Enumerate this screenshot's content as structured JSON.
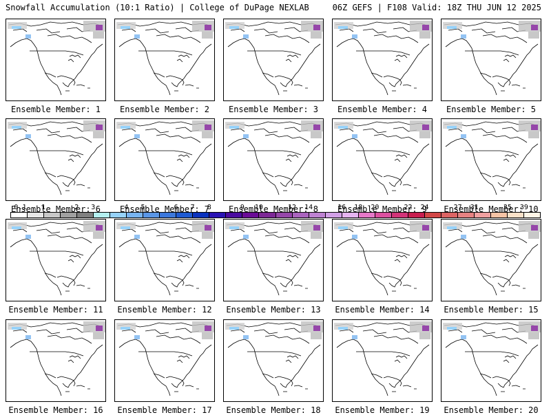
{
  "header": {
    "title_left": "Snowfall Accumulation (10:1 Ratio) | College of DuPage NEXLAB",
    "title_right": "06Z GEFS | F108 Valid: 18Z THU JUN 12 2025"
  },
  "panels": [
    {
      "label": "Ensemble Member: 1"
    },
    {
      "label": "Ensemble Member: 2"
    },
    {
      "label": "Ensemble Member: 3"
    },
    {
      "label": "Ensemble Member: 4"
    },
    {
      "label": "Ensemble Member: 5"
    },
    {
      "label": "Ensemble Member: 6"
    },
    {
      "label": "Ensemble Member: 7"
    },
    {
      "label": "Ensemble Member: 8"
    },
    {
      "label": "Ensemble Member: 9"
    },
    {
      "label": "Ensemble Member: 10"
    },
    {
      "label": "Ensemble Member: 11"
    },
    {
      "label": "Ensemble Member: 12"
    },
    {
      "label": "Ensemble Member: 13"
    },
    {
      "label": "Ensemble Member: 14"
    },
    {
      "label": "Ensemble Member: 15"
    },
    {
      "label": "Ensemble Member: 16"
    },
    {
      "label": "Ensemble Member: 17"
    },
    {
      "label": "Ensemble Member: 18"
    },
    {
      "label": "Ensemble Member: 19"
    },
    {
      "label": "Ensemble Member: 20"
    }
  ],
  "colorbar": {
    "tick_labels": [
      "0.1",
      "1",
      "2",
      "3",
      "4",
      "5",
      "6",
      "7",
      "8",
      "9",
      "10",
      "12",
      "14",
      "16",
      "18",
      "20",
      "22",
      "24",
      "27",
      "31",
      "35",
      "39"
    ],
    "colors": [
      "#ffffff",
      "#e6e6e6",
      "#c8c8c8",
      "#a0a0a0",
      "#808080",
      "#b4f0f0",
      "#96d2fa",
      "#78b4f0",
      "#5a96e6",
      "#3c78dc",
      "#1e5ad2",
      "#0a32be",
      "#2a14b4",
      "#4a0aa0",
      "#6a0a96",
      "#7d2896",
      "#9646aa",
      "#aa64be",
      "#be82d2",
      "#d2a0e6",
      "#e6b4f0",
      "#e678c8",
      "#dc50a0",
      "#d23278",
      "#c81e50",
      "#d24646",
      "#dc6464",
      "#e68282",
      "#f0a0a0",
      "#f5c3a5",
      "#fae1c8",
      "#fff5e6"
    ]
  }
}
